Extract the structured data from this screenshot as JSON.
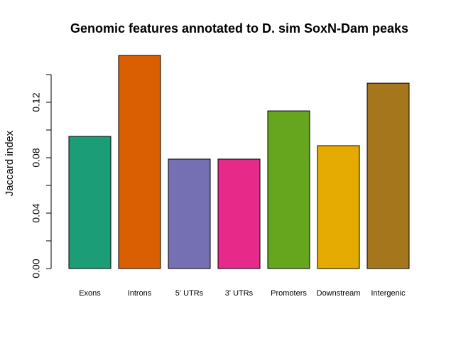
{
  "chart_data": {
    "type": "bar",
    "title": "Genomic features annotated to D. sim SoxN-Dam peaks",
    "y_label": "Jaccard index",
    "categories": [
      "Exons",
      "Introns",
      "5' UTRs",
      "3' UTRs",
      "Promoters",
      "Downstream",
      "Intergenic"
    ],
    "values": [
      0.0954,
      0.1538,
      0.079,
      0.079,
      0.1138,
      0.0887,
      0.1338
    ],
    "colors": [
      "#1B9E77",
      "#D95F02",
      "#7570B3",
      "#E7298A",
      "#66A61E",
      "#E6AB02",
      "#A6761D"
    ],
    "ylim": [
      0,
      0.16
    ],
    "yticks": [
      {
        "value": 0,
        "label": "0.00"
      },
      {
        "value": 0.02,
        "label": null
      },
      {
        "value": 0.04,
        "label": "0.04"
      },
      {
        "value": 0.06,
        "label": null
      },
      {
        "value": 0.08,
        "label": "0.08"
      },
      {
        "value": 0.1,
        "label": null
      },
      {
        "value": 0.12,
        "label": "0.12"
      },
      {
        "value": 0.14,
        "label": null
      }
    ]
  }
}
